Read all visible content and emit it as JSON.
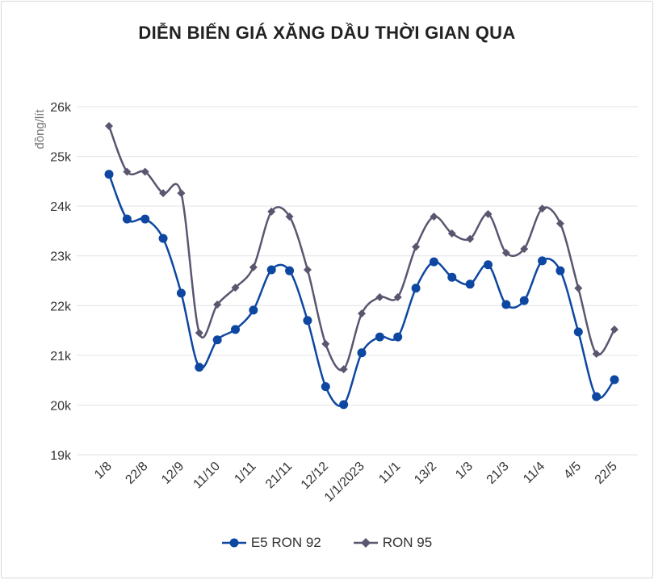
{
  "chart_data": {
    "type": "line",
    "title": "DIỄN BIẾN GIÁ XĂNG DẦU THỜI GIAN QUA",
    "ylabel": "đồng/lít",
    "xlabel": "",
    "ylim": [
      19000,
      26000
    ],
    "yticks": [
      "19k",
      "20k",
      "21k",
      "22k",
      "23k",
      "24k",
      "25k",
      "26k"
    ],
    "grid": true,
    "legend": "bottom",
    "categories": [
      "1/8",
      "",
      "22/8",
      "",
      "12/9",
      "",
      "11/10",
      "",
      "1/11",
      "",
      "21/11",
      "",
      "12/12",
      "",
      "1/1/2023",
      "",
      "11/1",
      "",
      "13/2",
      "",
      "1/3",
      "",
      "21/3",
      "",
      "11/4",
      "",
      "4/5",
      "",
      "22/5"
    ],
    "series": [
      {
        "name": "E5 RON 92",
        "color": "#0d47a1",
        "marker": "circle",
        "values": [
          24640,
          23740,
          23740,
          23350,
          22250,
          20760,
          21310,
          21520,
          21910,
          22720,
          22700,
          21700,
          20370,
          20010,
          21050,
          21370,
          21370,
          22350,
          22880,
          22570,
          22430,
          22820,
          22020,
          22100,
          22900,
          22700,
          21470,
          20170,
          20510
        ]
      },
      {
        "name": "RON 95",
        "color": "#5a5670",
        "marker": "diamond",
        "values": [
          25610,
          24690,
          24690,
          24260,
          24260,
          21450,
          22020,
          22360,
          22770,
          23890,
          23790,
          22720,
          21230,
          20720,
          21840,
          22170,
          22170,
          23180,
          23790,
          23450,
          23340,
          23840,
          23060,
          23140,
          23950,
          23650,
          22350,
          21030,
          21520
        ]
      }
    ]
  }
}
